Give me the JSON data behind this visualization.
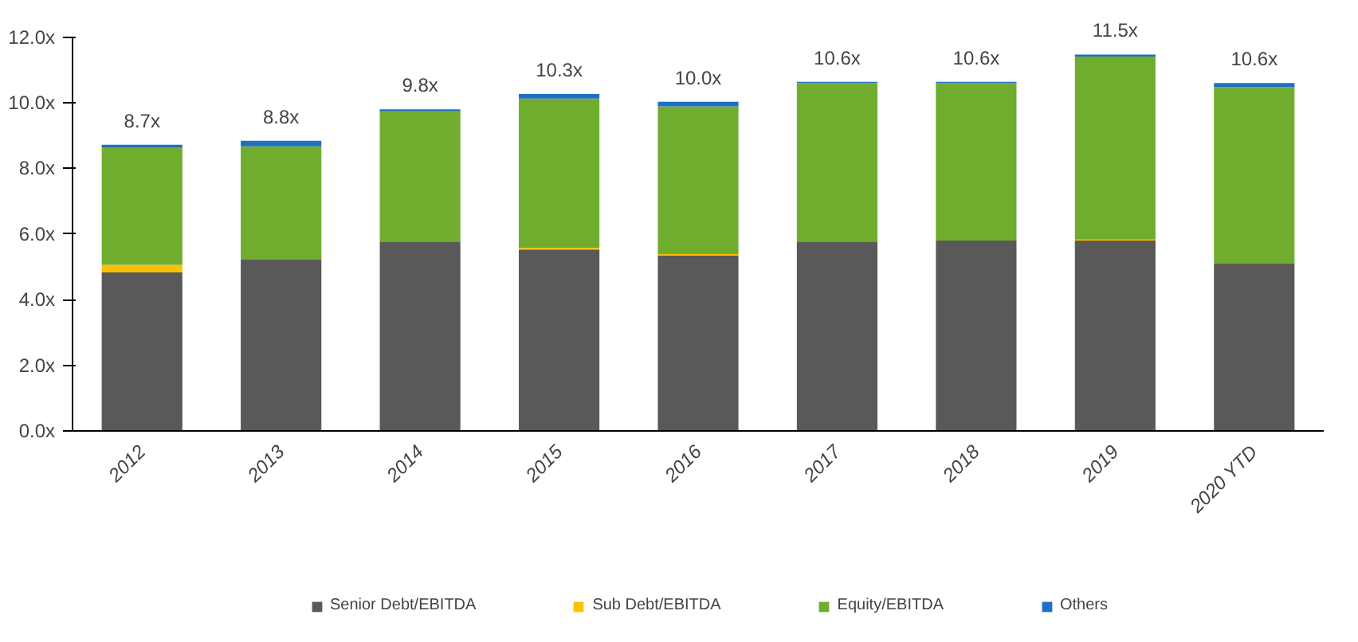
{
  "chart_data": {
    "type": "bar",
    "stacked": true,
    "categories": [
      "2012",
      "2013",
      "2014",
      "2015",
      "2016",
      "2017",
      "2018",
      "2019",
      "2020 YTD"
    ],
    "series": [
      {
        "name": "Senior Debt/EBITDA",
        "color": "#595959",
        "values": [
          4.83,
          5.22,
          5.77,
          5.53,
          5.34,
          5.77,
          5.8,
          5.8,
          5.1
        ]
      },
      {
        "name": "Sub Debt/EBITDA",
        "color": "#ffc000",
        "values": [
          0.23,
          0,
          0,
          0.05,
          0.05,
          0,
          0,
          0.03,
          0
        ]
      },
      {
        "name": "Equity/EBITDA",
        "color": "#70ad2f",
        "values": [
          3.58,
          3.45,
          3.97,
          4.55,
          4.5,
          4.83,
          4.8,
          5.58,
          5.38
        ]
      },
      {
        "name": "Others",
        "color": "#1f6fc4",
        "values": [
          0.08,
          0.17,
          0.06,
          0.14,
          0.14,
          0.04,
          0.04,
          0.06,
          0.12
        ]
      }
    ],
    "totals": [
      "8.7x",
      "8.8x",
      "9.8x",
      "10.3x",
      "10.0x",
      "10.6x",
      "10.6x",
      "11.5x",
      "10.6x"
    ],
    "ylim": [
      0,
      12
    ],
    "yticks": [
      {
        "value": 0,
        "label": "0.0x"
      },
      {
        "value": 2,
        "label": "2.0x"
      },
      {
        "value": 4,
        "label": "4.0x"
      },
      {
        "value": 6,
        "label": "6.0x"
      },
      {
        "value": 8,
        "label": "8.0x"
      },
      {
        "value": 10,
        "label": "10.0x"
      },
      {
        "value": 12,
        "label": "12.0x"
      }
    ],
    "grid": false,
    "legend": "bottom"
  }
}
